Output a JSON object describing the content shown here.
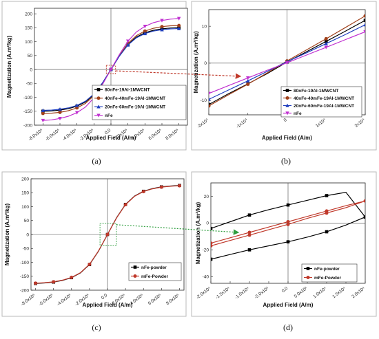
{
  "chart_data": [
    {
      "type": "line",
      "caption": "(a)",
      "xlabel": "Applied Field (A/m)",
      "ylabel": "Magnetization (A.m²/kg)",
      "xlim": [
        -900000,
        900000
      ],
      "ylim": [
        -200,
        220
      ],
      "xticks": [
        -800000,
        -600000,
        -400000,
        -200000,
        0,
        200000,
        400000,
        600000,
        800000
      ],
      "xtick_labels": [
        "-8.0x10⁵",
        "-6.0x10⁵",
        "-4.0x10⁵",
        "-2.0x10⁵",
        "0.0",
        "2.0x10⁵",
        "4.0x10⁵",
        "6.0x10⁵",
        "8.0x10⁵"
      ],
      "yticks": [
        -200,
        -150,
        -100,
        -50,
        0,
        50,
        100,
        150,
        200
      ],
      "ytick_labels": [
        "-200",
        "-150",
        "-100",
        "-50",
        "0",
        "50",
        "100",
        "150",
        "200"
      ],
      "legend_position": "bottom-right",
      "series": [
        {
          "name": "80nFe-19Al-1MWCNT",
          "color": "#000000",
          "marker": "square",
          "ms": 150,
          "x": [
            -800000,
            -700000,
            -600000,
            -500000,
            -400000,
            -300000,
            -200000,
            -100000,
            0,
            100000,
            200000,
            300000,
            400000,
            500000,
            600000,
            700000,
            800000
          ],
          "y": [
            -150,
            -149,
            -146,
            -141,
            -132,
            -117,
            -90,
            -49,
            0,
            49,
            90,
            117,
            132,
            141,
            146,
            149,
            150
          ]
        },
        {
          "name": "40nFe-40mFe-19Al-1MWCNT",
          "color": "#a0401a",
          "marker": "circle",
          "ms": 158,
          "x": [
            -800000,
            -700000,
            -600000,
            -500000,
            -400000,
            -300000,
            -200000,
            -100000,
            0,
            100000,
            200000,
            300000,
            400000,
            500000,
            600000,
            700000,
            800000
          ],
          "y": [
            -158,
            -157,
            -154,
            -148,
            -138,
            -122,
            -94,
            -51,
            0,
            51,
            94,
            122,
            138,
            148,
            154,
            157,
            158
          ]
        },
        {
          "name": "20nFe-60mFe-19Al-1MWCNT",
          "color": "#1f3fbf",
          "marker": "triangle-up",
          "ms": 147,
          "x": [
            -800000,
            -700000,
            -600000,
            -500000,
            -400000,
            -300000,
            -200000,
            -100000,
            0,
            100000,
            200000,
            300000,
            400000,
            500000,
            600000,
            700000,
            800000
          ],
          "y": [
            -147,
            -146,
            -143,
            -138,
            -129,
            -114,
            -88,
            -48,
            0,
            48,
            88,
            114,
            129,
            138,
            143,
            146,
            147
          ]
        },
        {
          "name": "nFe",
          "color": "#c030d0",
          "marker": "triangle-down",
          "ms": 183,
          "x": [
            -800000,
            -700000,
            -600000,
            -500000,
            -400000,
            -300000,
            -200000,
            -100000,
            0,
            100000,
            200000,
            300000,
            400000,
            500000,
            600000,
            700000,
            800000
          ],
          "y": [
            -183,
            -181,
            -176,
            -168,
            -155,
            -135,
            -102,
            -54,
            0,
            54,
            102,
            135,
            155,
            168,
            176,
            181,
            183
          ]
        }
      ]
    },
    {
      "type": "line",
      "caption": "(b)",
      "xlabel": "Applied Field (A/m)",
      "ylabel": "Magnetization (A.m²/kg)",
      "xlim": [
        -20000,
        20000
      ],
      "ylim": [
        -14,
        14.5
      ],
      "xticks": [
        -20000,
        -10000,
        0,
        10000,
        20000
      ],
      "xtick_labels": [
        "-2x10⁴",
        "-1x10⁴",
        "0",
        "1x10⁴",
        "2x10⁴"
      ],
      "yticks": [
        -10,
        0,
        10
      ],
      "ytick_labels": [
        "-10",
        "0",
        "10"
      ],
      "legend_position": "bottom-right",
      "series": [
        {
          "name": "80nFe-19Al-1MWCNT",
          "color": "#000000",
          "marker": "square",
          "x": [
            -20000,
            -15000,
            -10000,
            -5000,
            0,
            5000,
            10000,
            15000,
            20000
          ],
          "y": [
            -11.2,
            -8.3,
            -5.6,
            -2.8,
            0.3,
            3.1,
            5.9,
            8.7,
            11.6
          ]
        },
        {
          "name": "40nFe-40mFe-19Al-1MWCNT",
          "color": "#a0401a",
          "marker": "circle",
          "x": [
            -20000,
            -15000,
            -10000,
            -5000,
            0,
            5000,
            10000,
            15000,
            20000
          ],
          "y": [
            -11.6,
            -8.6,
            -5.7,
            -2.6,
            0.6,
            3.6,
            6.6,
            9.7,
            12.8
          ]
        },
        {
          "name": "20nFe-60mFe-19Al-1MWCNT",
          "color": "#1f3fbf",
          "marker": "triangle-up",
          "x": [
            -20000,
            -15000,
            -10000,
            -5000,
            0,
            5000,
            10000,
            15000,
            20000
          ],
          "y": [
            -9.8,
            -7.3,
            -4.8,
            -2.2,
            0.4,
            2.8,
            5.3,
            7.8,
            10.4
          ]
        },
        {
          "name": "nFe",
          "color": "#c030d0",
          "marker": "triangle-down",
          "x": [
            -20000,
            -15000,
            -10000,
            -5000,
            0,
            5000,
            10000,
            15000,
            20000
          ],
          "y": [
            -8.2,
            -6.1,
            -4.0,
            -1.9,
            0.1,
            2.2,
            4.3,
            6.4,
            8.5
          ]
        }
      ]
    },
    {
      "type": "line",
      "caption": "(c)",
      "xlabel": "Applied Field (A/m)",
      "ylabel": "Magnetization (A.m²/kg)",
      "xlim": [
        -850000,
        850000
      ],
      "ylim": [
        -200,
        200
      ],
      "xticks": [
        -800000,
        -600000,
        -400000,
        -200000,
        0,
        200000,
        400000,
        600000,
        800000
      ],
      "xtick_labels": [
        "-8.0x10⁵",
        "-6.0x10⁵",
        "-4.0x10⁵",
        "-2.0x10⁵",
        "0.0",
        "2.0x10⁵",
        "4.0x10⁵",
        "6.0x10⁵",
        "8.0x10⁵"
      ],
      "yticks": [
        -200,
        -150,
        -100,
        -50,
        0,
        50,
        100,
        150,
        200
      ],
      "ytick_labels": [
        "-200",
        "-150",
        "-100",
        "-50",
        "0",
        "50",
        "100",
        "150",
        "200"
      ],
      "legend_position": "bottom-right",
      "series": [
        {
          "name": "nFe-powder",
          "color": "#000000",
          "marker": "square",
          "x": [
            -800000,
            -700000,
            -600000,
            -500000,
            -400000,
            -300000,
            -200000,
            -100000,
            0,
            100000,
            200000,
            300000,
            400000,
            500000,
            600000,
            700000,
            800000
          ],
          "y": [
            -176,
            -174,
            -171,
            -165,
            -155,
            -138,
            -108,
            -60,
            0,
            60,
            108,
            138,
            155,
            165,
            171,
            174,
            176
          ]
        },
        {
          "name": "mFe-Powder",
          "color": "#c0392b",
          "marker": "circle",
          "x": [
            -800000,
            -700000,
            -600000,
            -500000,
            -400000,
            -300000,
            -200000,
            -100000,
            0,
            100000,
            200000,
            300000,
            400000,
            500000,
            600000,
            700000,
            800000
          ],
          "y": [
            -175,
            -173,
            -170,
            -164,
            -154,
            -137,
            -107,
            -59,
            0,
            59,
            107,
            137,
            154,
            164,
            170,
            173,
            175
          ]
        }
      ]
    },
    {
      "type": "line",
      "caption": "(d)",
      "xlabel": "Applied Field (A/m)",
      "ylabel": "Magnetization (A.m²/kg)",
      "xlim": [
        -20000,
        20000
      ],
      "ylim": [
        -45,
        30
      ],
      "xticks": [
        -20000,
        -15000,
        -10000,
        -5000,
        0,
        5000,
        10000,
        15000,
        20000
      ],
      "xtick_labels": [
        "-2.0x10⁴",
        "-1.5x10⁴",
        "-1.0x10⁴",
        "-5.0x10³",
        "0.0",
        "5.0x10³",
        "1.0x10⁴",
        "1.5x10⁴",
        "2.0x10⁴"
      ],
      "yticks": [
        -40,
        -20,
        0,
        20
      ],
      "ytick_labels": [
        "-40",
        "-20",
        "0",
        "20"
      ],
      "legend_position": "bottom-right",
      "series": [
        {
          "name": "nFe-powder",
          "color": "#000000",
          "marker": "square",
          "x": [
            -20000,
            -15000,
            -10000,
            -5000,
            0,
            5000,
            10000,
            15000,
            20000,
            15000,
            10000,
            5000,
            0,
            -5000,
            -10000,
            -15000,
            -20000
          ],
          "y": [
            -27,
            -23.5,
            -20,
            -17,
            -14,
            -10.5,
            -6.5,
            -1.5,
            4.5,
            23,
            20.5,
            17,
            13.5,
            10,
            6,
            1,
            -4
          ]
        },
        {
          "name": "mFe-Powder",
          "color": "#c0392b",
          "marker": "circle",
          "x": [
            -20000,
            -15000,
            -10000,
            -5000,
            0,
            5000,
            10000,
            15000,
            20000,
            15000,
            10000,
            5000,
            0,
            -5000,
            -10000,
            -15000,
            -20000
          ],
          "y": [
            -17,
            -13,
            -9,
            -5,
            -1,
            3.5,
            7.5,
            11.5,
            16.5,
            13,
            9,
            5,
            1,
            -3,
            -7,
            -11,
            -15
          ]
        }
      ]
    }
  ]
}
